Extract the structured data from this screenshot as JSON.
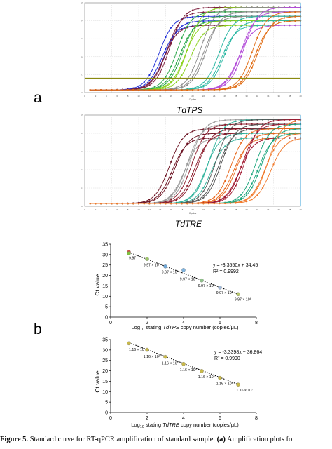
{
  "panel_a_label": "a",
  "panel_b_label": "b",
  "amp1": {
    "title": "TdTPS",
    "xlabel": "Cycles",
    "ylabel": "Fluorescence (dRn)",
    "threshold": 0.08,
    "series": [
      {
        "color": "#1c2bd6",
        "ct": 12.3
      },
      {
        "color": "#7a1b3a",
        "ct": 13.2
      },
      {
        "color": "#2ba84a",
        "ct": 15.6
      },
      {
        "color": "#8ad11b",
        "ct": 17.1
      },
      {
        "color": "#8c8c8c",
        "ct": 20.0
      },
      {
        "color": "#2ab7a3",
        "ct": 23.4
      },
      {
        "color": "#b24bd8",
        "ct": 27.0
      },
      {
        "color": "#e06a10",
        "ct": 29.6
      }
    ]
  },
  "amp2": {
    "title": "TdTRE",
    "xlabel": "Cycles",
    "ylabel": "Fluorescence (dRn)",
    "series": [
      {
        "color": "#6a1020",
        "ct": 14.2
      },
      {
        "color": "#9a9a9a",
        "ct": 17.0
      },
      {
        "color": "#8c1a2a",
        "ct": 18.4
      },
      {
        "color": "#2fb39c",
        "ct": 21.0
      },
      {
        "color": "#555555",
        "ct": 22.8
      },
      {
        "color": "#e8661a",
        "ct": 25.6
      },
      {
        "color": "#a01830",
        "ct": 27.2
      },
      {
        "color": "#1aa57c",
        "ct": 30.2
      },
      {
        "color": "#f0782a",
        "ct": 32.0
      }
    ]
  },
  "chart_data": [
    {
      "type": "scatter",
      "xlabel_pre": "Log",
      "xlabel_sub": "10",
      "xlabel_mid": " stating ",
      "xlabel_gene": "TdTPS",
      "xlabel_post": " copy number (copies/μL)",
      "ylabel": "Ct value",
      "xlim": [
        0,
        8
      ],
      "ylim": [
        0,
        35
      ],
      "xticks": [
        0,
        2,
        4,
        6,
        8
      ],
      "yticks": [
        0,
        5,
        10,
        15,
        20,
        25,
        30,
        35
      ],
      "equation": "y = -3.3550x + 34.45",
      "r2": "R² = 0.9992",
      "trend": {
        "slope": -3.355,
        "intercept": 34.45
      },
      "points": [
        {
          "x": 1,
          "y": 31.2,
          "color": "#d9524a"
        },
        {
          "x": 1,
          "y": 30.6,
          "color": "#7fc241"
        },
        {
          "x": 2,
          "y": 27.9,
          "color": "#9ec66a"
        },
        {
          "x": 3,
          "y": 24.3,
          "color": "#6fa8d8"
        },
        {
          "x": 4,
          "y": 22.6,
          "color": "#7fb4e0"
        },
        {
          "x": 5,
          "y": 17.6,
          "color": "#8fc08a"
        },
        {
          "x": 6,
          "y": 14.2,
          "color": "#a0b8d8"
        },
        {
          "x": 7,
          "y": 11.0,
          "color": "#b9c86e"
        }
      ],
      "point_labels": [
        {
          "text": "9.97",
          "x": 1,
          "y": 27.8
        },
        {
          "text": "9.97 × 10",
          "x": 1.8,
          "y": 24.4
        },
        {
          "text": "9.97 × 10²",
          "x": 2.8,
          "y": 21.0
        },
        {
          "text": "9.97 × 10³",
          "x": 3.8,
          "y": 17.7
        },
        {
          "text": "9.97 × 10⁴",
          "x": 4.8,
          "y": 14.4
        },
        {
          "text": "9.97 × 10⁵",
          "x": 5.8,
          "y": 11.1
        },
        {
          "text": "9.97 × 10⁶",
          "x": 6.8,
          "y": 7.9
        }
      ]
    },
    {
      "type": "scatter",
      "xlabel_pre": "Log",
      "xlabel_sub": "10",
      "xlabel_mid": " stating ",
      "xlabel_gene": "TdTRE",
      "xlabel_post": " copy number (copies/μL)",
      "ylabel": "Ct value",
      "xlim": [
        0,
        8
      ],
      "ylim": [
        0,
        35
      ],
      "xticks": [
        0,
        2,
        4,
        6,
        8
      ],
      "yticks": [
        0,
        5,
        10,
        15,
        20,
        25,
        30,
        35
      ],
      "equation": "y = -3.3398x + 36.864",
      "r2": "R² = 0.9990",
      "trend": {
        "slope": -3.3398,
        "intercept": 36.864
      },
      "points": [
        {
          "x": 1,
          "y": 33.2,
          "color": "#c8b84a"
        },
        {
          "x": 2,
          "y": 30.1,
          "color": "#c8b84a"
        },
        {
          "x": 3,
          "y": 26.7,
          "color": "#c8b84a"
        },
        {
          "x": 4,
          "y": 23.3,
          "color": "#c8b84a"
        },
        {
          "x": 5,
          "y": 19.9,
          "color": "#c8b84a"
        },
        {
          "x": 6,
          "y": 16.6,
          "color": "#c8b84a"
        },
        {
          "x": 7,
          "y": 13.4,
          "color": "#c8b84a"
        }
      ],
      "point_labels": [
        {
          "text": "1.16 × 10",
          "x": 1.0,
          "y": 29.6
        },
        {
          "text": "1.16 × 10²",
          "x": 1.8,
          "y": 26.3
        },
        {
          "text": "1.16 × 10³",
          "x": 2.8,
          "y": 23.0
        },
        {
          "text": "1.16 × 10⁴",
          "x": 3.8,
          "y": 19.8
        },
        {
          "text": "1.16 × 10⁵",
          "x": 4.8,
          "y": 16.5
        },
        {
          "text": "1.16 × 10⁶",
          "x": 5.8,
          "y": 13.3
        },
        {
          "text": "1.16 × 10⁷",
          "x": 6.9,
          "y": 10.1
        }
      ]
    }
  ],
  "caption": {
    "line1_bold": "Figure 5.",
    "line1_rest": " Standard curve for RT-qPCR amplification of standard sample. ",
    "line1_bold2": "(a)",
    "line1_tail": " Amplification plots fo"
  }
}
